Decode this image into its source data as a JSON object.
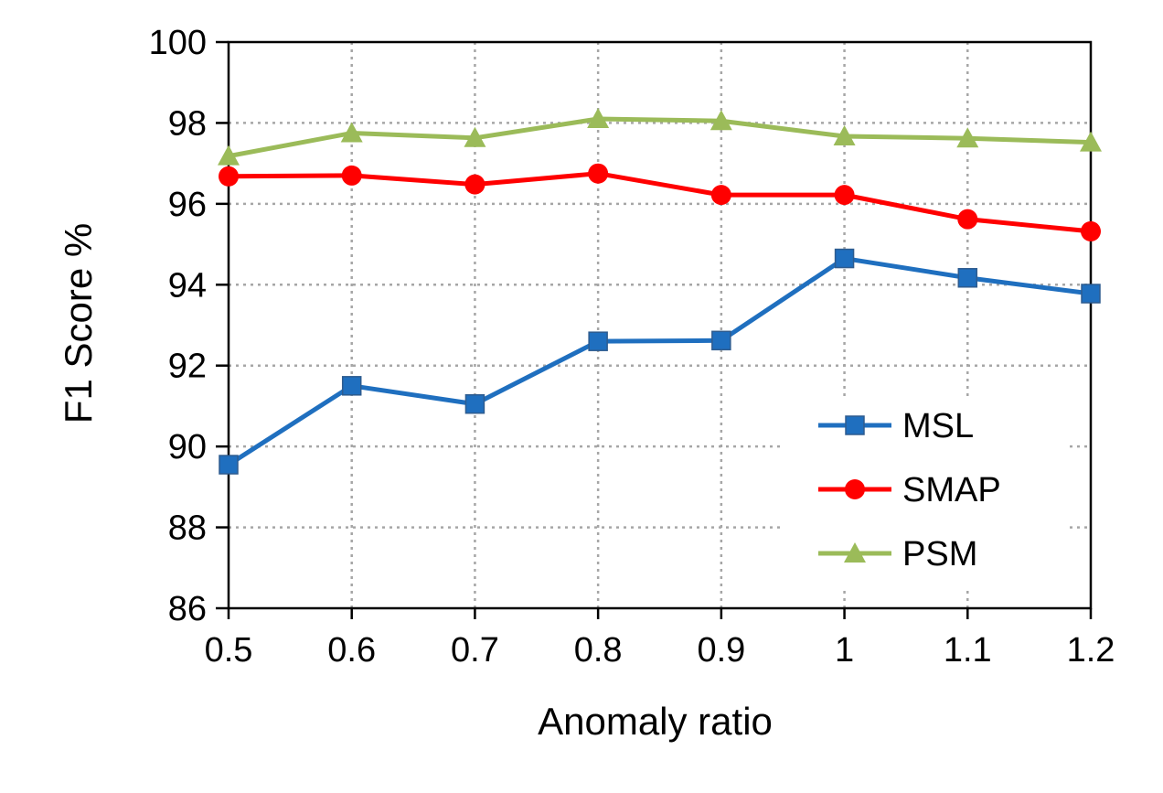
{
  "chart_data": {
    "type": "line",
    "title": "",
    "xlabel": "Anomaly ratio",
    "ylabel": "F1  Score %",
    "x": [
      0.5,
      0.6,
      0.7,
      0.8,
      0.9,
      1,
      1.1,
      1.2
    ],
    "x_tick_labels": [
      "0.5",
      "0.6",
      "0.7",
      "0.8",
      "0.9",
      "1",
      "1.1",
      "1.2"
    ],
    "ylim": [
      86,
      100
    ],
    "y_ticks": [
      86,
      88,
      90,
      92,
      94,
      96,
      98,
      100
    ],
    "y_tick_labels": [
      "86",
      "88",
      "90",
      "92",
      "94",
      "96",
      "98",
      "100"
    ],
    "grid": true,
    "legend_position": "lower-right",
    "series": [
      {
        "name": "MSL",
        "color": "#1F6FBF",
        "marker": "square",
        "values": [
          89.55,
          91.5,
          91.05,
          92.6,
          92.62,
          94.65,
          94.17,
          93.78
        ]
      },
      {
        "name": "SMAP",
        "color": "#FF0000",
        "marker": "circle",
        "values": [
          96.68,
          96.7,
          96.48,
          96.75,
          96.22,
          96.22,
          95.62,
          95.32
        ]
      },
      {
        "name": "PSM",
        "color": "#9BBB59",
        "marker": "triangle",
        "values": [
          97.18,
          97.75,
          97.63,
          98.1,
          98.05,
          97.67,
          97.62,
          97.52
        ]
      }
    ]
  }
}
